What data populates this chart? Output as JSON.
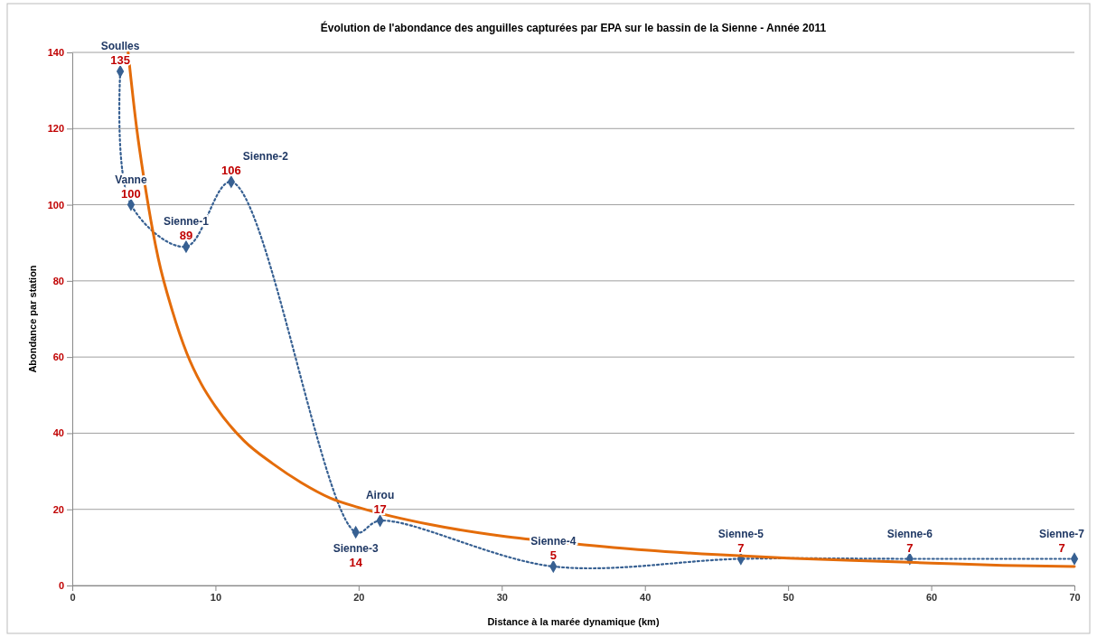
{
  "chart_data": {
    "type": "line",
    "title": "Évolution de l'abondance des anguilles capturées par EPA sur le bassin de la Sienne - Année 2011",
    "xlabel": "Distance à la marée dynamique (km)",
    "ylabel": "Abondance  par station",
    "xlim": [
      0,
      70
    ],
    "xticks": [
      0,
      10,
      20,
      30,
      40,
      50,
      60,
      70
    ],
    "ylim": [
      0,
      140
    ],
    "yticks": [
      0,
      20,
      40,
      60,
      80,
      100,
      120,
      140
    ],
    "grid": "y",
    "series": [
      {
        "color": "#376092",
        "marker": "diamond",
        "line_style": "dotted",
        "x": [
          3.35,
          4.1,
          7.95,
          11.1,
          19.8,
          21.5,
          33.6,
          46.7,
          58.5,
          70
        ],
        "values": [
          135,
          100,
          89,
          106,
          14,
          17,
          5,
          7,
          7,
          7
        ],
        "data_labels": true
      },
      {
        "color": "#e46c0a",
        "marker": "none",
        "line_style": "solid",
        "x": [
          3.9,
          4.5,
          5,
          6,
          7,
          8,
          9,
          10,
          12,
          14,
          16,
          18,
          20,
          25,
          30,
          35,
          40,
          45,
          50,
          55,
          60,
          65,
          70
        ],
        "values": [
          140,
          120,
          107,
          86,
          72,
          61,
          53,
          47,
          38,
          32,
          27,
          23,
          20.5,
          16,
          13,
          11,
          9.3,
          8.1,
          7.2,
          6.5,
          5.9,
          5.3,
          5
        ]
      }
    ],
    "annotations": [
      {
        "text": "Soulles",
        "x": 3.35,
        "y": 135
      },
      {
        "text": "Vanne",
        "x": 4.1,
        "y": 100
      },
      {
        "text": "Sienne-1",
        "x": 7.95,
        "y": 89
      },
      {
        "text": "Sienne-2",
        "x": 11.1,
        "y": 106
      },
      {
        "text": "Sienne-3",
        "x": 19.8,
        "y": 14
      },
      {
        "text": "Airou",
        "x": 21.5,
        "y": 17
      },
      {
        "text": "Sienne-4",
        "x": 33.6,
        "y": 5
      },
      {
        "text": "Sienne-5",
        "x": 46.7,
        "y": 7
      },
      {
        "text": "Sienne-6",
        "x": 58.5,
        "y": 7
      },
      {
        "text": "Sienne-7",
        "x": 70,
        "y": 7
      }
    ]
  }
}
